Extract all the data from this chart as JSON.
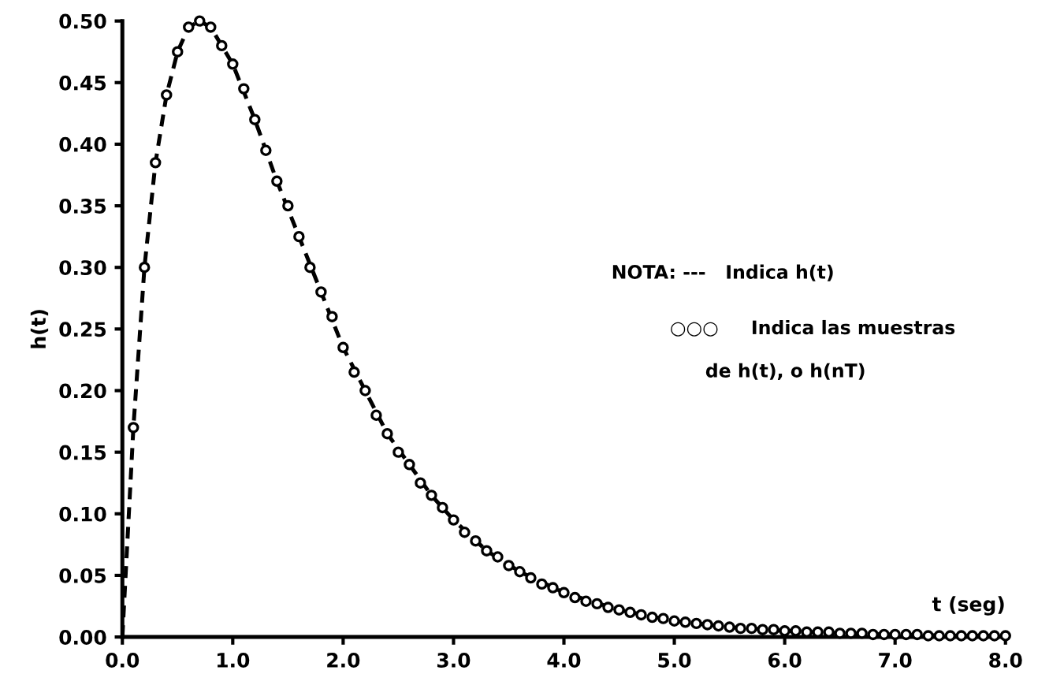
{
  "chart_data": {
    "type": "line",
    "xlabel": "t (seg)",
    "ylabel": "h(t)",
    "annotations": [
      "NOTA: ---   Indica h(t)",
      "○○○     Indica las muestras",
      "de h(t), o h(nT)"
    ],
    "series": [
      {
        "color": "#000000",
        "line_style": "dashed",
        "marker": "none",
        "x": [
          0,
          0.1,
          0.2,
          0.3,
          0.4,
          0.5,
          0.6,
          0.7,
          0.8,
          0.9,
          1.0,
          1.2,
          1.4,
          1.6,
          1.8,
          2.0,
          2.2,
          2.4,
          2.6,
          2.8,
          3.0,
          3.3,
          3.6,
          4.0,
          4.5,
          5.0,
          5.5,
          6.0,
          6.5,
          7.0,
          7.5,
          8.0
        ],
        "values": [
          0,
          0.17,
          0.3,
          0.385,
          0.44,
          0.475,
          0.495,
          0.5,
          0.495,
          0.48,
          0.465,
          0.42,
          0.37,
          0.325,
          0.28,
          0.235,
          0.2,
          0.165,
          0.14,
          0.115,
          0.095,
          0.07,
          0.053,
          0.036,
          0.022,
          0.013,
          0.008,
          0.005,
          0.003,
          0.002,
          0.001,
          0.001
        ]
      },
      {
        "type": "scatter",
        "color": "#000000",
        "marker": "circle",
        "x": [
          0.1,
          0.2,
          0.3,
          0.4,
          0.5,
          0.6,
          0.7,
          0.8,
          0.9,
          1.0,
          1.1,
          1.2,
          1.3,
          1.4,
          1.5,
          1.6,
          1.7,
          1.8,
          1.9,
          2.0,
          2.1,
          2.2,
          2.3,
          2.4,
          2.5,
          2.6,
          2.7,
          2.8,
          2.9,
          3.0,
          3.1,
          3.2,
          3.3,
          3.4,
          3.5,
          3.6,
          3.7,
          3.8,
          3.9,
          4.0,
          4.1,
          4.2,
          4.3,
          4.4,
          4.5,
          4.6,
          4.7,
          4.8,
          4.9,
          5.0,
          5.1,
          5.2,
          5.3,
          5.4,
          5.5,
          5.6,
          5.7,
          5.8,
          5.9,
          6.0,
          6.1,
          6.2,
          6.3,
          6.4,
          6.5,
          6.6,
          6.7,
          6.8,
          6.9,
          7.0,
          7.1,
          7.2,
          7.3,
          7.4,
          7.5,
          7.6,
          7.7,
          7.8,
          7.9,
          8.0
        ],
        "values": [
          0.17,
          0.3,
          0.385,
          0.44,
          0.475,
          0.495,
          0.5,
          0.495,
          0.48,
          0.465,
          0.445,
          0.42,
          0.395,
          0.37,
          0.35,
          0.325,
          0.3,
          0.28,
          0.26,
          0.235,
          0.215,
          0.2,
          0.18,
          0.165,
          0.15,
          0.14,
          0.125,
          0.115,
          0.105,
          0.095,
          0.085,
          0.078,
          0.07,
          0.065,
          0.058,
          0.053,
          0.048,
          0.043,
          0.04,
          0.036,
          0.032,
          0.029,
          0.027,
          0.024,
          0.022,
          0.02,
          0.018,
          0.016,
          0.015,
          0.013,
          0.012,
          0.011,
          0.01,
          0.009,
          0.008,
          0.007,
          0.007,
          0.006,
          0.006,
          0.005,
          0.005,
          0.004,
          0.004,
          0.004,
          0.003,
          0.003,
          0.003,
          0.002,
          0.002,
          0.002,
          0.002,
          0.002,
          0.001,
          0.001,
          0.001,
          0.001,
          0.001,
          0.001,
          0.001,
          0.001
        ]
      }
    ],
    "xlim": [
      0,
      8.0
    ],
    "ylim": [
      0,
      0.5
    ],
    "xticks": [
      {
        "value": 0,
        "label": "0.0"
      },
      {
        "value": 1,
        "label": "1.0"
      },
      {
        "value": 2,
        "label": "2.0"
      },
      {
        "value": 3,
        "label": "3.0"
      },
      {
        "value": 4,
        "label": "4.0"
      },
      {
        "value": 5,
        "label": "5.0"
      },
      {
        "value": 6,
        "label": "6.0"
      },
      {
        "value": 7,
        "label": "7.0"
      },
      {
        "value": 8,
        "label": "8.0"
      }
    ],
    "yticks": [
      {
        "value": 0,
        "label": "0.00"
      },
      0.05,
      {
        "value": 0.1,
        "label": "0.10"
      },
      0.15,
      {
        "value": 0.2,
        "label": "0.20"
      },
      0.25,
      {
        "value": 0.3,
        "label": "0.30"
      },
      0.35,
      {
        "value": 0.4,
        "label": "0.40"
      },
      0.45,
      {
        "value": 0.5,
        "label": "0.50"
      }
    ],
    "grid": false,
    "legend": false
  }
}
